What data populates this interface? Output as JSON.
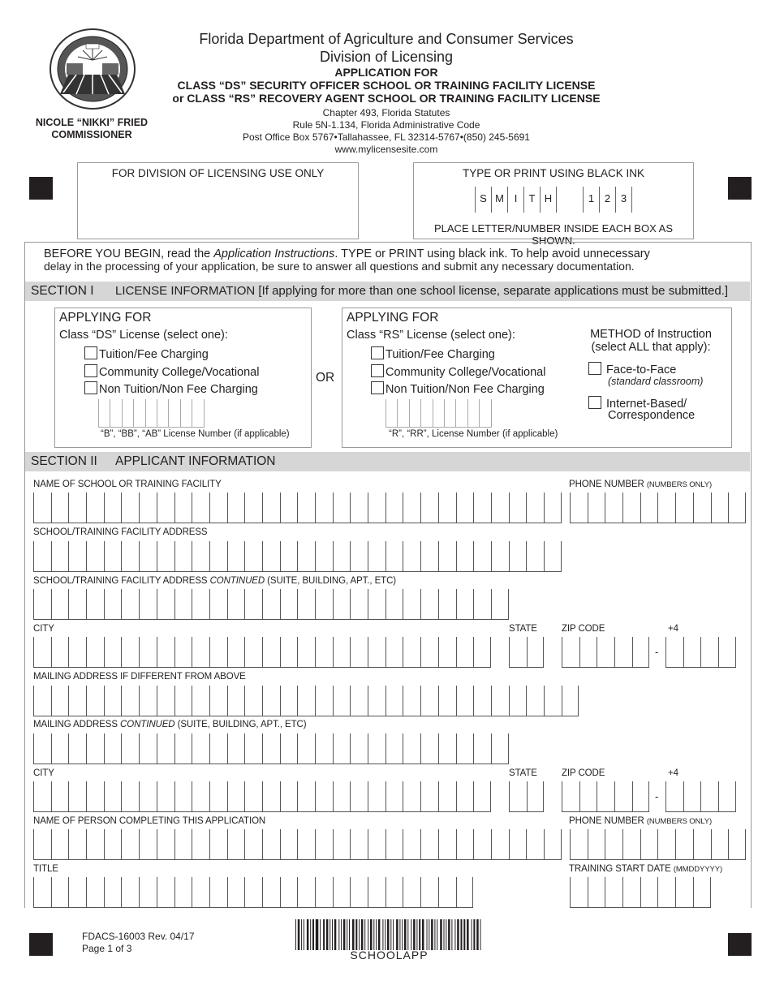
{
  "header": {
    "department": "Florida Department of Agriculture and Consumer Services",
    "division": "Division of Licensing",
    "app_for": "APPLICATION FOR",
    "title_line1": "CLASS “DS” SECURITY OFFICER SCHOOL OR TRAINING FACILITY LICENSE",
    "title_line2": "or CLASS “RS” RECOVERY AGENT SCHOOL OR TRAINING FACILITY LICENSE",
    "statute": "Chapter 493, Florida Statutes",
    "rule": "Rule 5N-1.134, Florida Administrative Code",
    "address": "Post Office Box 5767•Tallahassee, FL 32314-5767•(850) 245-5691",
    "website": "www.mylicensesite.com",
    "commissioner_name": "NICOLE “NIKKI” FRIED",
    "commissioner_title": "COMMISSIONER",
    "seal_text": "FLORIDA DEPARTMENT OF AGRICULTURE AND CONSUMER SERVICES EST 1889"
  },
  "office_use": {
    "label": "FOR DIVISION OF LICENSING USE ONLY"
  },
  "ink_note": {
    "title": "TYPE OR PRINT USING BLACK INK",
    "example_letters": [
      "S",
      "M",
      "I",
      "T",
      "H"
    ],
    "example_numbers": [
      "1",
      "2",
      "3"
    ],
    "caption": "PLACE LETTER/NUMBER INSIDE EACH BOX AS SHOWN."
  },
  "instructions": {
    "pre": "BEFORE YOU BEGIN, read the ",
    "em": "Application Instructions",
    "post": ". TYPE or PRINT using black ink. To help avoid unnecessary",
    "line2": "delay in the processing of your application, be sure to answer all questions and submit any necessary documentation."
  },
  "section1": {
    "number": "SECTION I",
    "title": "LICENSE INFORMATION [If applying for more than one school license, separate applications must be submitted.]",
    "ds": {
      "heading": "APPLYING FOR",
      "subheading": "Class “DS” License  (select one):",
      "options": [
        "Tuition/Fee Charging",
        "Community College/Vocational",
        "Non Tuition/Non Fee Charging"
      ],
      "license_caption": "“B”, “BB”, “AB” License Number (if applicable)"
    },
    "or": "OR",
    "rs": {
      "heading": "APPLYING FOR",
      "subheading": "Class “RS” License (select one):",
      "options": [
        "Tuition/Fee Charging",
        "Community College/Vocational",
        "Non Tuition/Non Fee Charging"
      ],
      "license_caption": "“R”, “RR”,  License Number (if applicable)"
    },
    "method": {
      "title1": "METHOD of Instruction",
      "title2": "(select ALL that apply):",
      "face": "Face-to-Face",
      "face_note": "(standard classroom)",
      "internet1": "Internet-Based/",
      "internet2": "Correspondence"
    }
  },
  "section2": {
    "number": "SECTION II",
    "title": "APPLICANT INFORMATION",
    "fields": {
      "school_name": "NAME OF SCHOOL OR TRAINING FACILITY",
      "phone": "PHONE NUMBER",
      "phone_note": "(NUMBERS ONLY)",
      "address": "SCHOOL/TRAINING FACILITY ADDRESS",
      "address_cont_pre": "SCHOOL/TRAINING FACILITY ADDRESS ",
      "address_cont_em": "CONTINUED",
      "address_cont_post": " (SUITE, BUILDING, APT., ETC)",
      "city": "CITY",
      "state": "STATE",
      "zip": "ZIP CODE",
      "plus4": "+4",
      "dash": "-",
      "mailing": "MAILING ADDRESS IF DIFFERENT FROM ABOVE",
      "mailing_cont_pre": "MAILING ADDRESS ",
      "mailing_cont_em": "CONTINUED",
      "mailing_cont_post": " (SUITE, BUILDING, APT., ETC)",
      "person": "NAME OF PERSON COMPLETING THIS APPLICATION",
      "title": "TITLE",
      "start_date": "TRAINING START DATE",
      "start_date_note": "(MMDDYYYY)"
    }
  },
  "footer": {
    "form_id": "FDACS-16003 Rev. 04/17",
    "page": "Page 1 of 3",
    "barcode_text": "SCHOOLAPP"
  }
}
